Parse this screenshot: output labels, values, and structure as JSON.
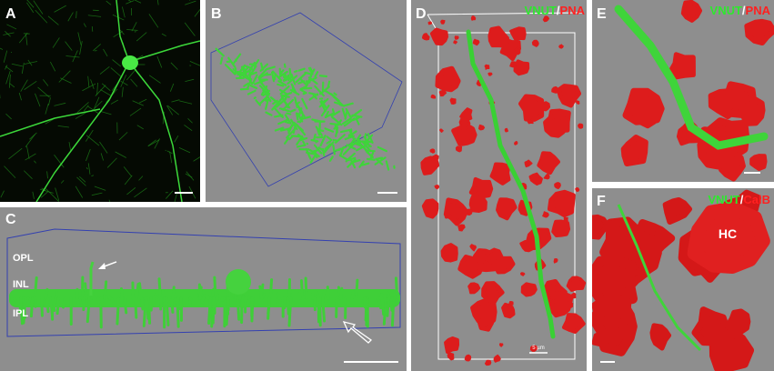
{
  "panels": [
    {
      "letter": "A"
    },
    {
      "letter": "B"
    },
    {
      "letter": "C",
      "labels": [
        "OPL",
        "INL",
        "IPL"
      ]
    },
    {
      "letter": "D",
      "stain": [
        "VNUT",
        "/",
        "PNA"
      ],
      "scale": "5 µm"
    },
    {
      "letter": "E",
      "stain": [
        "VNUT",
        "/",
        "PNA"
      ]
    },
    {
      "letter": "F",
      "stain": [
        "VNUT",
        "/",
        "CalB"
      ],
      "labels": [
        "HC"
      ]
    }
  ]
}
